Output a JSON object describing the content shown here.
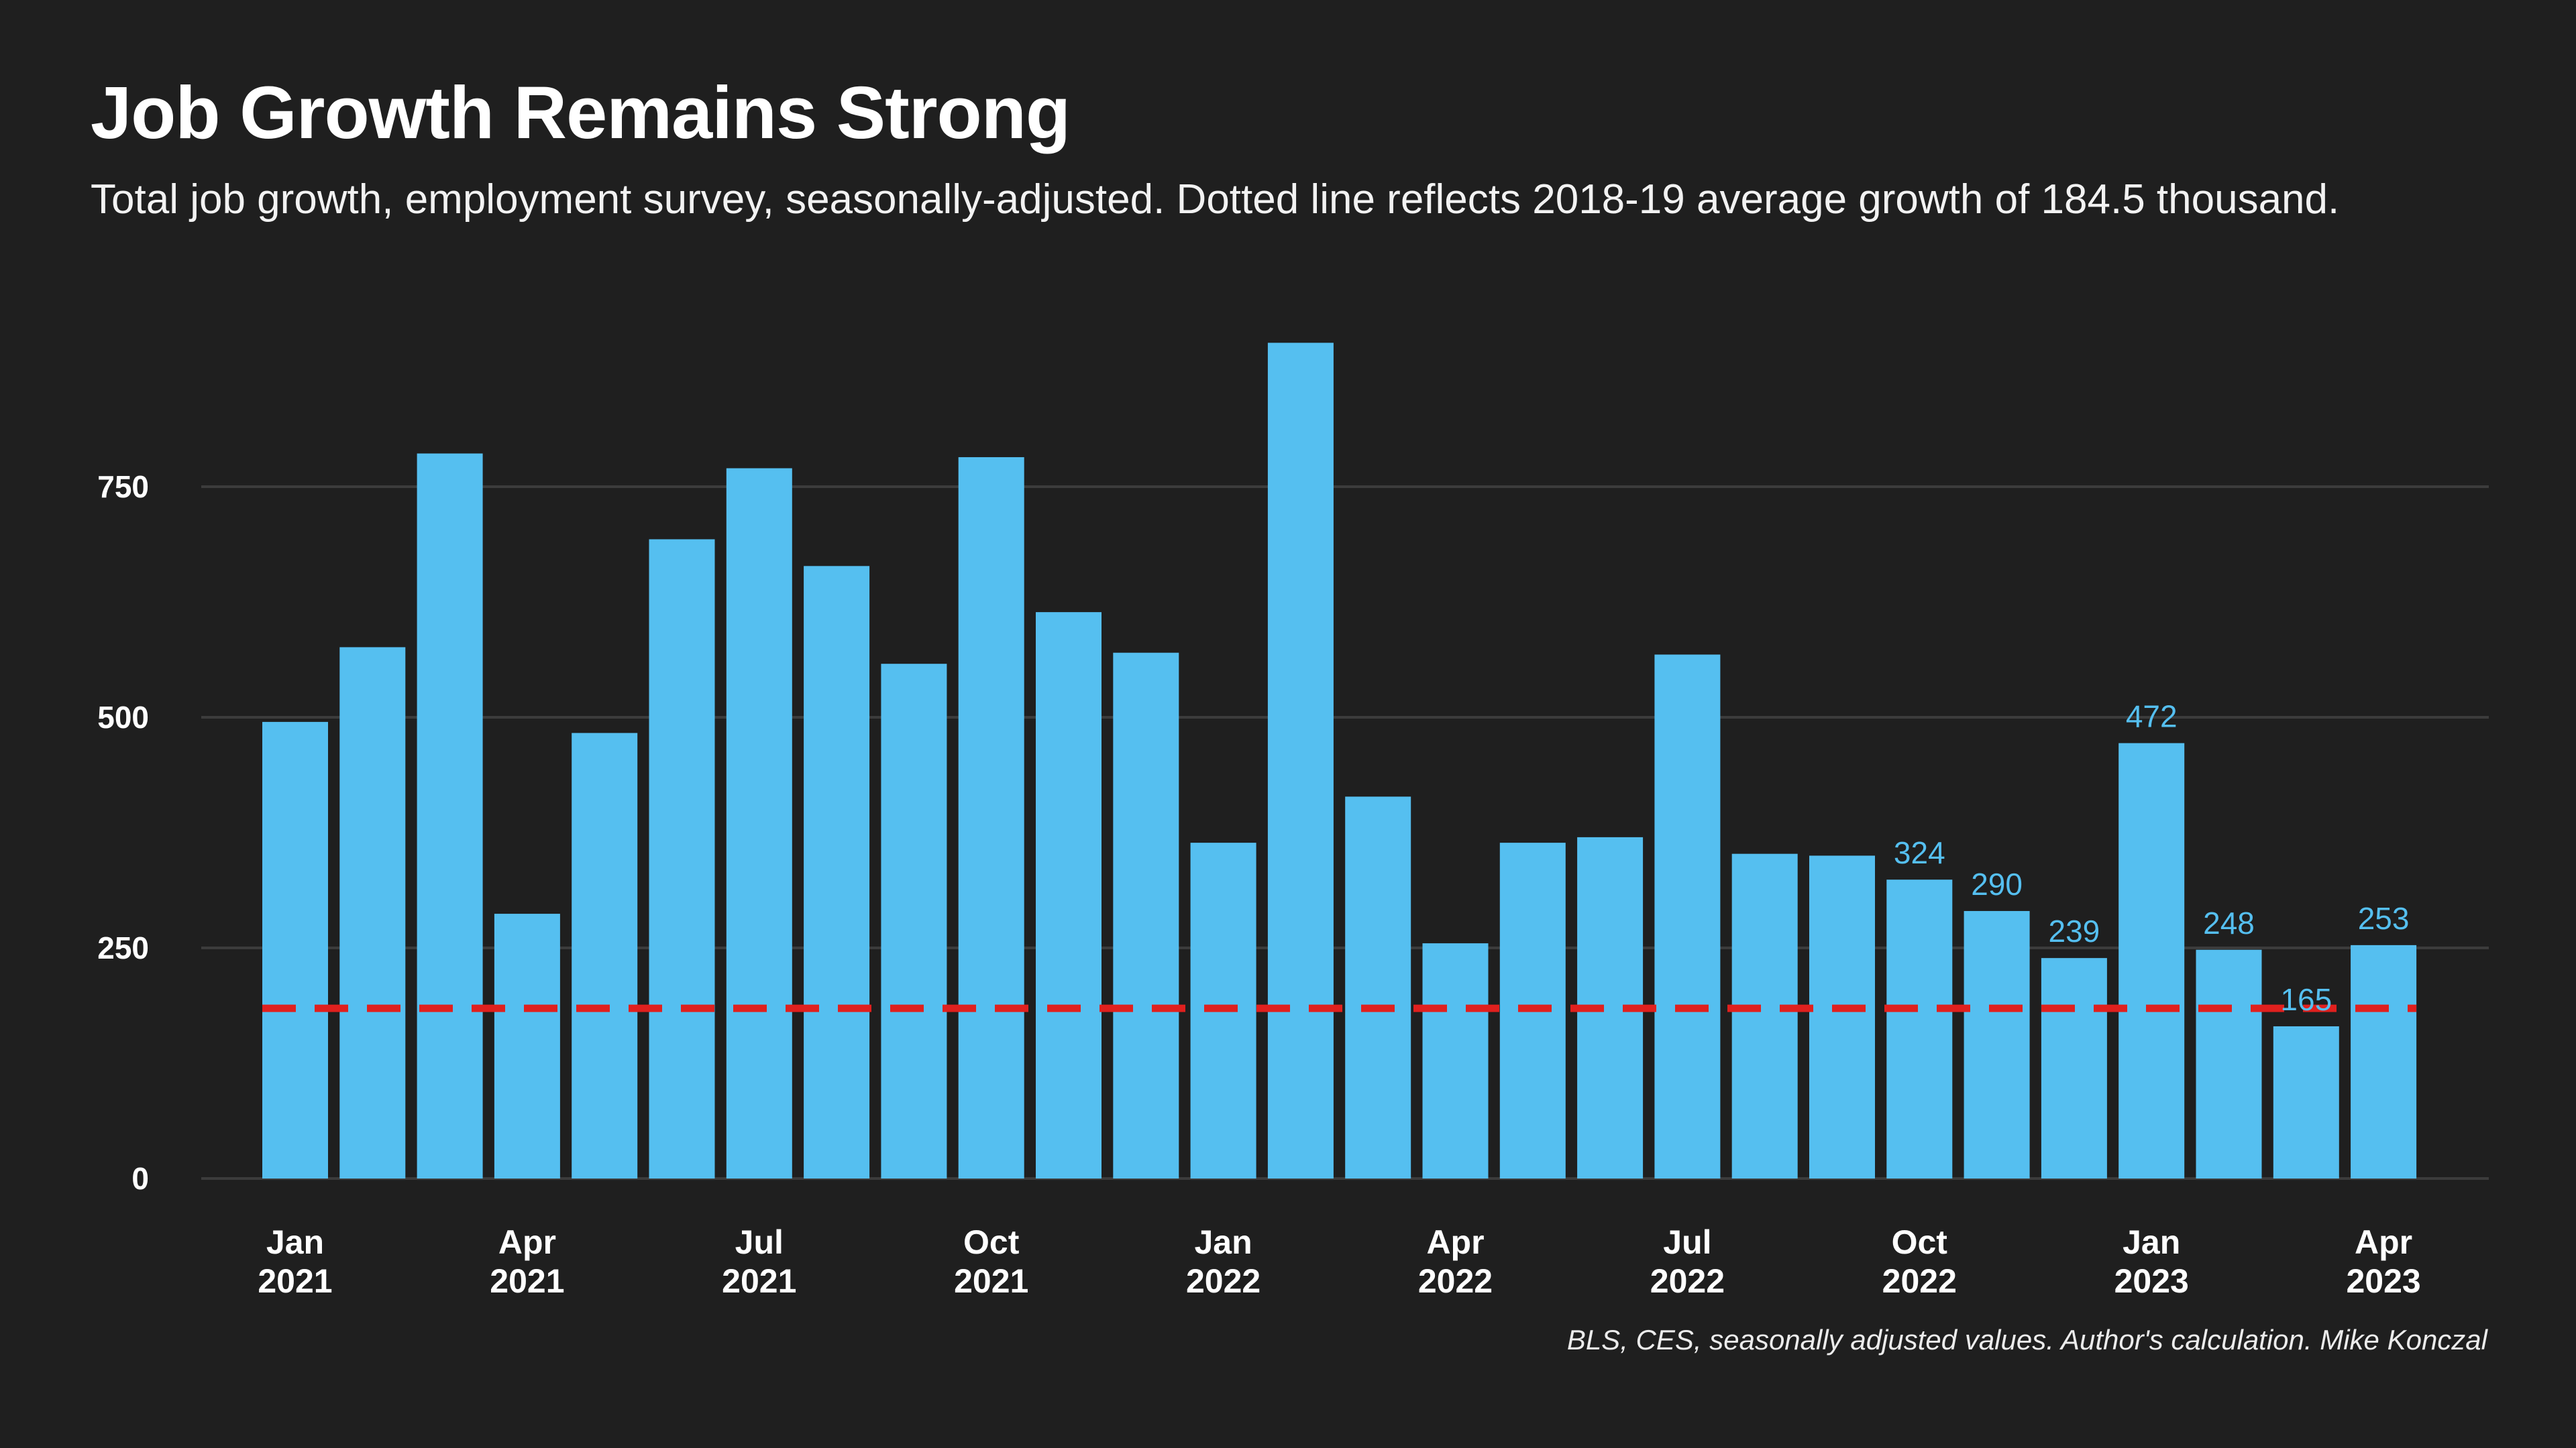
{
  "title": "Job Growth Remains Strong",
  "subtitle": "Total job growth, employment survey, seasonally-adjusted. Dotted line reflects 2018-19 average growth of 184.5 thousand.",
  "caption": "BLS, CES, seasonally adjusted values. Author's calculation. Mike Konczal",
  "colors": {
    "background": "#1f1f1f",
    "bar": "#55bff0",
    "reference_line": "#e0201e",
    "grid": "#3c3c3c",
    "label": "#55bff0"
  },
  "chart_data": {
    "type": "bar",
    "title": "Job Growth Remains Strong",
    "ylim": [
      0,
      950
    ],
    "y_ticks": [
      0,
      250,
      500,
      750
    ],
    "y_tick_labels": [
      "0",
      "250",
      "500",
      "750"
    ],
    "grid": true,
    "reference_line": {
      "value": 184.5,
      "style": "dashed"
    },
    "categories": [
      "Jan 2021",
      "Feb 2021",
      "Mar 2021",
      "Apr 2021",
      "May 2021",
      "Jun 2021",
      "Jul 2021",
      "Aug 2021",
      "Sep 2021",
      "Oct 2021",
      "Nov 2021",
      "Dec 2021",
      "Jan 2022",
      "Feb 2022",
      "Mar 2022",
      "Apr 2022",
      "May 2022",
      "Jun 2022",
      "Jul 2022",
      "Aug 2022",
      "Sep 2022",
      "Oct 2022",
      "Nov 2022",
      "Dec 2022",
      "Jan 2023",
      "Feb 2023",
      "Mar 2023",
      "Apr 2023"
    ],
    "values": [
      495,
      576,
      786,
      287,
      483,
      693,
      770,
      664,
      558,
      782,
      614,
      570,
      364,
      906,
      414,
      255,
      364,
      370,
      568,
      352,
      350,
      324,
      290,
      239,
      472,
      248,
      165,
      253
    ],
    "data_labels": [
      {
        "index": 21,
        "text": "324"
      },
      {
        "index": 22,
        "text": "290"
      },
      {
        "index": 23,
        "text": "239"
      },
      {
        "index": 24,
        "text": "472"
      },
      {
        "index": 25,
        "text": "248"
      },
      {
        "index": 26,
        "text": "165"
      },
      {
        "index": 27,
        "text": "253"
      }
    ],
    "x_ticks": [
      {
        "index": 0,
        "month": "Jan",
        "year": "2021"
      },
      {
        "index": 3,
        "month": "Apr",
        "year": "2021"
      },
      {
        "index": 6,
        "month": "Jul",
        "year": "2021"
      },
      {
        "index": 9,
        "month": "Oct",
        "year": "2021"
      },
      {
        "index": 12,
        "month": "Jan",
        "year": "2022"
      },
      {
        "index": 15,
        "month": "Apr",
        "year": "2022"
      },
      {
        "index": 18,
        "month": "Jul",
        "year": "2022"
      },
      {
        "index": 21,
        "month": "Oct",
        "year": "2022"
      },
      {
        "index": 24,
        "month": "Jan",
        "year": "2023"
      },
      {
        "index": 27,
        "month": "Apr",
        "year": "2023"
      }
    ]
  }
}
